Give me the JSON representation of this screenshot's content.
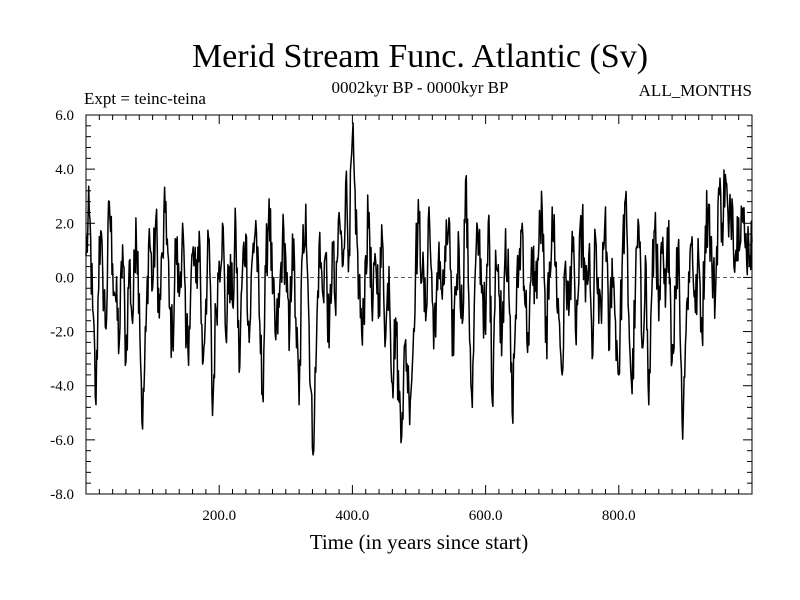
{
  "header": {
    "title": "Merid Stream Func. Atlantic (Sv)",
    "subtitle": "0002kyr BP - 0000kyr BP",
    "expt": "Expt = teinc-teina",
    "months": "ALL_MONTHS"
  },
  "chart_data": {
    "type": "line",
    "title": "Merid Stream Func. Atlantic (Sv)",
    "xlabel": "Time (in years since start)",
    "ylabel": "",
    "xlim": [
      0,
      1000
    ],
    "ylim": [
      -8.0,
      6.0
    ],
    "xticks": [
      200,
      400,
      600,
      800
    ],
    "xtick_labels": [
      "200.0",
      "400.0",
      "600.0",
      "800.0"
    ],
    "yticks": [
      -8,
      -6,
      -4,
      -2,
      0,
      2,
      4,
      6
    ],
    "ytick_labels": [
      "-8.0",
      "-6.0",
      "-4.0",
      "-2.0",
      "0.0",
      "2.0",
      "4.0",
      "6.0"
    ],
    "zero_line": 0.0,
    "series": [
      {
        "name": "teinc-teina",
        "x_step": 5,
        "x_start": 0,
        "values": [
          0.8,
          2.4,
          -1.2,
          -4.7,
          1.5,
          0.2,
          -1.9,
          2.8,
          0.5,
          -0.9,
          -2.4,
          1.2,
          -3.1,
          0.6,
          -1.7,
          2.2,
          -0.6,
          -5.6,
          -2.0,
          1.8,
          -0.4,
          2.2,
          -1.5,
          0.9,
          2.8,
          -1.1,
          -2.4,
          1.4,
          -0.7,
          2.0,
          -2.6,
          -1.8,
          0.9,
          -0.2,
          1.7,
          -3.2,
          -0.8,
          1.4,
          -5.1,
          -1.2,
          0.6,
          2.0,
          -2.2,
          0.4,
          -1.0,
          1.9,
          -3.5,
          0.3,
          1.6,
          -2.4,
          0.8,
          2.1,
          -1.4,
          -4.3,
          0.2,
          2.9,
          -0.6,
          -2.3,
          -1.1,
          1.4,
          0.7,
          -2.7,
          1.6,
          -1.5,
          -4.7,
          0.9,
          2.7,
          -1.8,
          -6.3,
          -3.5,
          1.2,
          -0.5,
          0.9,
          -2.6,
          1.3,
          -1.4,
          2.4,
          0.4,
          3.5,
          1.0,
          5.2,
          1.6,
          -0.2,
          -2.5,
          0.8,
          2.4,
          -1.6,
          0.6,
          -0.6,
          1.4,
          -2.2,
          0.4,
          -3.9,
          -1.5,
          -4.6,
          -5.0,
          -2.3,
          -4.4,
          -3.3,
          0.7,
          2.0,
          0.2,
          -1.6,
          2.6,
          -0.9,
          -2.2,
          1.3,
          -0.8,
          0.6,
          2.2,
          -2.9,
          -0.4,
          1.1,
          -1.7,
          3.6,
          -0.8,
          -4.8,
          0.5,
          1.5,
          -0.3,
          -2.1,
          2.3,
          -4.6,
          1.0,
          -0.6,
          -1.9,
          1.8,
          -0.7,
          -5.0,
          -1.4,
          0.5,
          2.0,
          -1.1,
          -2.5,
          0.9,
          -0.5,
          1.2,
          2.5,
          -2.4,
          -0.8,
          2.6,
          0.4,
          -1.5,
          -3.6,
          0.6,
          -1.4,
          1.7,
          -2.0,
          -0.2,
          2.1,
          -0.9,
          0.8,
          -3.0,
          1.5,
          -1.7,
          -0.6,
          2.6,
          -2.7,
          0.7,
          -1.6,
          -3.6,
          0.4,
          2.9,
          -1.4,
          -4.3,
          -0.4,
          1.9,
          -2.6,
          0.8,
          -4.7,
          -0.3,
          2.4,
          -1.6,
          0.9,
          -1.1,
          2.1,
          -3.1,
          -0.6,
          1.4,
          -5.3,
          -2.5,
          0.2,
          1.5,
          -1.3,
          0.7,
          -2.1,
          1.9,
          2.7,
          0.3,
          -0.7,
          3.3,
          2.0,
          3.8,
          1.5,
          2.9,
          0.8,
          2.2,
          2.5,
          1.1,
          1.3
        ]
      }
    ]
  }
}
